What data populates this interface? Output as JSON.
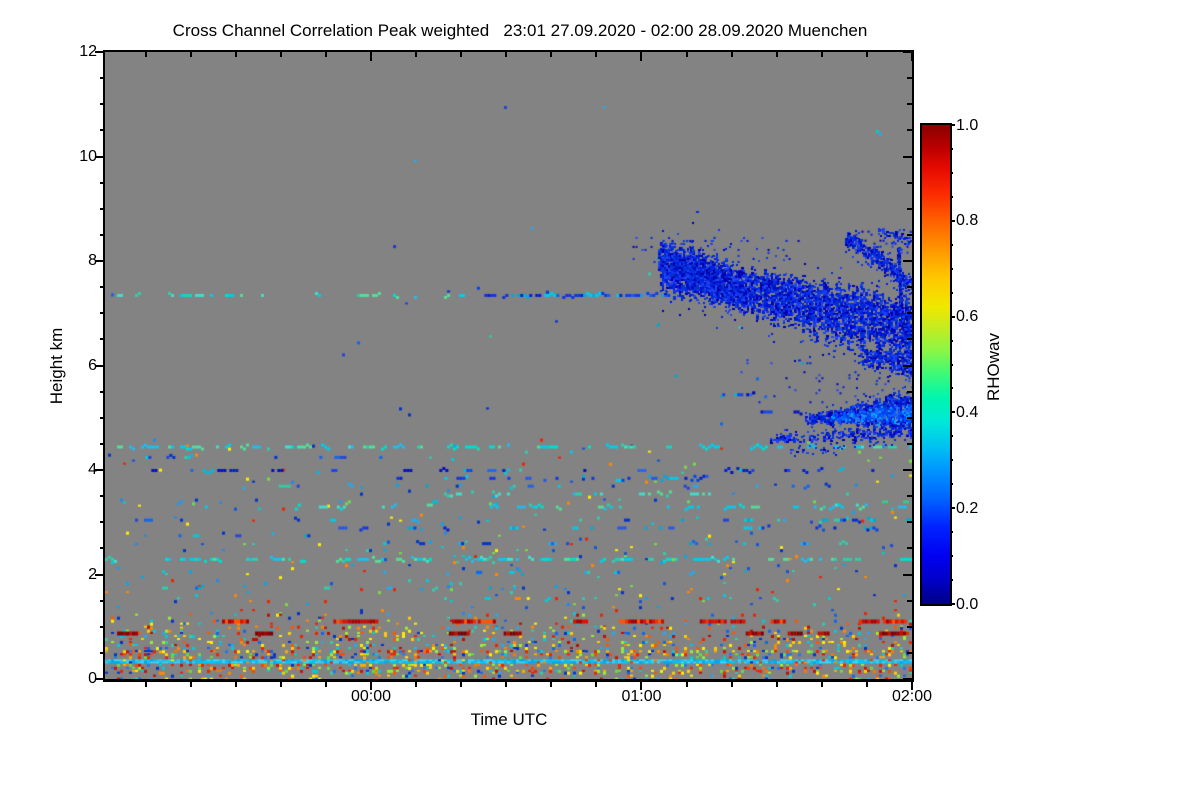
{
  "title": "Cross Channel Correlation Peak weighted   23:01 27.09.2020 - 02:00 28.09.2020 Muenchen",
  "chart_data": {
    "type": "heatmap",
    "title": "Cross Channel Correlation Peak weighted",
    "time_range_label": "23:01 27.09.2020 - 02:00 28.09.2020",
    "site": "Muenchen",
    "xlabel": "Time UTC",
    "ylabel": "Height km",
    "ylim": [
      0,
      12
    ],
    "duration_min": 179,
    "x_ticks": [
      {
        "label": "00:00",
        "minute": 59
      },
      {
        "label": "01:00",
        "minute": 119
      },
      {
        "label": "02:00",
        "minute": 179
      }
    ],
    "x_minor_step_min": 10,
    "y_ticks": [
      {
        "label": "12",
        "value": 12
      },
      {
        "label": "10",
        "value": 10
      },
      {
        "label": "8",
        "value": 8
      },
      {
        "label": "6",
        "value": 6
      },
      {
        "label": "4",
        "value": 4
      },
      {
        "label": "2",
        "value": 2
      },
      {
        "label": "0",
        "value": 0
      }
    ],
    "y_minor_step_km": 0.5,
    "background_color": "#838383",
    "colorbar": {
      "label": "RHOwav",
      "range": [
        0,
        1
      ],
      "minor_step": 0.05,
      "ticks": [
        {
          "label": "1.0",
          "value": 1.0
        },
        {
          "label": "0.8",
          "value": 0.8
        },
        {
          "label": "0.6",
          "value": 0.6
        },
        {
          "label": "0.4",
          "value": 0.4
        },
        {
          "label": "0.2",
          "value": 0.2
        },
        {
          "label": "0.0",
          "value": 0.0
        }
      ],
      "colormap": [
        [
          0.0,
          "#000085"
        ],
        [
          0.05,
          "#0000C8"
        ],
        [
          0.1,
          "#0000F0"
        ],
        [
          0.16,
          "#0022FF"
        ],
        [
          0.22,
          "#0064FF"
        ],
        [
          0.28,
          "#0096FF"
        ],
        [
          0.33,
          "#00C3F0"
        ],
        [
          0.38,
          "#00E8D8"
        ],
        [
          0.43,
          "#00F5B0"
        ],
        [
          0.48,
          "#3CFA78"
        ],
        [
          0.53,
          "#8CF545"
        ],
        [
          0.58,
          "#C8EB1E"
        ],
        [
          0.62,
          "#F0E800"
        ],
        [
          0.68,
          "#FFC800"
        ],
        [
          0.74,
          "#FF9600"
        ],
        [
          0.8,
          "#FF6000"
        ],
        [
          0.86,
          "#FA2800"
        ],
        [
          0.91,
          "#E60A00"
        ],
        [
          0.95,
          "#BE0000"
        ],
        [
          1.0,
          "#8B0000"
        ]
      ]
    },
    "palettes": {
      "cool": [
        "#00CCDD",
        "#22AAEE",
        "#1166EE",
        "#0033CC",
        "#33CCAA",
        "#2244DD",
        "#00AACC"
      ],
      "cyanteal": [
        "#00DDD0",
        "#00CCEE",
        "#33CCAA",
        "#44DDCC",
        "#22BBEE",
        "#55DD99"
      ],
      "bluecyan": [
        "#1133DD",
        "#0022CC",
        "#2255EE",
        "#00AADD",
        "#0044EE",
        "#00CCEE"
      ],
      "blue_heavy": [
        "#0022CC",
        "#1144EE",
        "#0011BB",
        "#2266EE",
        "#00BBDD"
      ],
      "coolgreen": [
        "#33CC88",
        "#00CCAA",
        "#66DD55",
        "#00BBDD",
        "#2299EE"
      ],
      "mix": [
        "#EE2200",
        "#FF8800",
        "#FFEE00",
        "#99EE33",
        "#00CCDD",
        "#1166EE",
        "#0033CC",
        "#FF5500",
        "#22AAEE",
        "#FFCC00",
        "#33CCAA",
        "#BB1100"
      ],
      "mix_warm": [
        "#EE2200",
        "#FF7700",
        "#FFEE00",
        "#FFAA00",
        "#CC1100",
        "#99EE33",
        "#00CCDD",
        "#2277EE",
        "#FFD700",
        "#FF4400",
        "#0033CC",
        "#66DD44"
      ],
      "mix_coolbias": [
        "#00CCDD",
        "#2288EE",
        "#1155DD",
        "#0033CC",
        "#33CCAA",
        "#77DD44",
        "#FFEE00",
        "#FF8800",
        "#EE2200",
        "#00AAEE"
      ],
      "cloudblue": [
        "#0011CC",
        "#0022E0",
        "#1133E8",
        "#0000AA",
        "#2244F0",
        "#0033D0"
      ],
      "cloudbright": [
        "#0055FF",
        "#1166FF",
        "#00AAFF",
        "#2277EE",
        "#0044EE"
      ],
      "redline": [
        "#DD1100",
        "#C40B00",
        "#EE3300",
        "#AA0000",
        "#FF5500"
      ],
      "darkred": [
        "#8B0000",
        "#A00000",
        "#7A0000",
        "#C41000"
      ],
      "cyanband": [
        "#11BBEE",
        "#00CCFF",
        "#44CCEE",
        "#00AAEE",
        "#33DDFF"
      ],
      "cyanband_intr": [
        "#EE2200",
        "#FF8800",
        "#0022CC",
        "#FFEE00",
        "#DD4400"
      ]
    },
    "features": [
      {
        "type": "fill"
      },
      {
        "type": "band",
        "h": [
          8.7,
          12.0
        ],
        "density": 0.0002,
        "palette": "cool"
      },
      {
        "type": "band",
        "h": [
          4.6,
          8.7
        ],
        "density": 0.0008,
        "palette": "cool"
      },
      {
        "type": "band",
        "h": [
          2.6,
          4.6
        ],
        "density": 0.012,
        "palette": "mix_coolbias"
      },
      {
        "type": "band",
        "h": [
          1.25,
          2.6
        ],
        "density": 0.028,
        "palette": "mix_coolbias"
      },
      {
        "type": "band",
        "h": [
          1.0,
          1.25
        ],
        "density": 0.07,
        "palette": "mix"
      },
      {
        "type": "band",
        "h": [
          0.9,
          1.0
        ],
        "density": 0.12,
        "palette": "mix"
      },
      {
        "type": "band",
        "h": [
          0.55,
          0.9
        ],
        "density": 0.2,
        "palette": "mix"
      },
      {
        "type": "band",
        "h": [
          0.38,
          0.55
        ],
        "density": 0.3,
        "palette": "mix_warm"
      },
      {
        "type": "band",
        "h": [
          0.14,
          0.29
        ],
        "density": 0.3,
        "palette": "mix_warm"
      },
      {
        "type": "band",
        "h": [
          0.02,
          0.14
        ],
        "density": 0.17,
        "palette": "mix"
      },
      {
        "type": "streak",
        "h": 7.35,
        "x0": 0.0,
        "x1": 0.47,
        "density": 0.2,
        "palette": "cyanteal",
        "dashmax": 3
      },
      {
        "type": "streak",
        "h": 7.35,
        "x0": 0.47,
        "x1": 0.7,
        "density": 0.5,
        "palette": "bluecyan",
        "dashmax": 5
      },
      {
        "type": "streak",
        "h": 7.45,
        "x0": 0.42,
        "x1": 0.6,
        "density": 0.12,
        "palette": "bluecyan",
        "dashmax": 2
      },
      {
        "type": "streak",
        "h": 4.45,
        "x0": 0.0,
        "x1": 1.0,
        "density": 0.28,
        "palette": "cyanteal",
        "dashmax": 4
      },
      {
        "type": "streak",
        "h": 4.25,
        "x0": 0.05,
        "x1": 0.45,
        "density": 0.08,
        "palette": "cool",
        "dashmax": 2
      },
      {
        "type": "streak",
        "h": 4.0,
        "x0": 0.05,
        "x1": 1.0,
        "density": 0.13,
        "palette": "blue_heavy",
        "dashmax": 3
      },
      {
        "type": "streak",
        "h": 3.85,
        "x0": 0.35,
        "x1": 0.78,
        "density": 0.15,
        "palette": "bluecyan",
        "dashmax": 3
      },
      {
        "type": "streak",
        "h": 3.7,
        "x0": 0.1,
        "x1": 0.9,
        "density": 0.07,
        "palette": "cool",
        "dashmax": 2
      },
      {
        "type": "streak",
        "h": 3.55,
        "x0": 0.42,
        "x1": 0.75,
        "density": 0.11,
        "palette": "cyanteal",
        "dashmax": 3
      },
      {
        "type": "streak",
        "h": 3.4,
        "x0": 0.0,
        "x1": 1.0,
        "density": 0.06,
        "palette": "coolgreen",
        "dashmax": 2
      },
      {
        "type": "streak",
        "h": 3.3,
        "x0": 0.12,
        "x1": 1.0,
        "density": 0.12,
        "palette": "cyanteal",
        "dashmax": 3
      },
      {
        "type": "streak",
        "h": 3.05,
        "x0": 0.0,
        "x1": 1.0,
        "density": 0.09,
        "palette": "cool",
        "dashmax": 3
      },
      {
        "type": "streak",
        "h": 2.9,
        "x0": 0.2,
        "x1": 0.97,
        "density": 0.11,
        "palette": "bluecyan",
        "dashmax": 3
      },
      {
        "type": "streak",
        "h": 2.75,
        "x0": 0.05,
        "x1": 0.6,
        "density": 0.07,
        "palette": "cool",
        "dashmax": 2
      },
      {
        "type": "streak",
        "h": 2.6,
        "x0": 0.3,
        "x1": 1.0,
        "density": 0.09,
        "palette": "cool",
        "dashmax": 3
      },
      {
        "type": "streak",
        "h": 2.3,
        "x0": 0.0,
        "x1": 1.0,
        "density": 0.26,
        "palette": "cyanteal",
        "dashmax": 4
      },
      {
        "type": "streak",
        "h": 2.05,
        "x0": 0.3,
        "x1": 0.78,
        "density": 0.06,
        "palette": "cool",
        "dashmax": 2
      },
      {
        "type": "streak",
        "h": 1.75,
        "x0": 0.0,
        "x1": 0.55,
        "density": 0.05,
        "palette": "cool",
        "dashmax": 2
      },
      {
        "type": "streak",
        "h": 1.55,
        "x0": 0.4,
        "x1": 1.0,
        "density": 0.05,
        "palette": "mix_coolbias",
        "dashmax": 2
      },
      {
        "type": "streak",
        "h": 5.45,
        "x0": 0.75,
        "x1": 0.85,
        "density": 0.2,
        "palette": "blue_heavy",
        "dashmax": 3
      },
      {
        "type": "streak",
        "h": 5.12,
        "x0": 0.79,
        "x1": 0.87,
        "density": 0.4,
        "palette": "blue_heavy",
        "dashmax": 4
      },
      {
        "type": "dashes",
        "h": 1.1,
        "thick": 4,
        "palette": "redline",
        "segments": [
          [
            0.145,
            0.176
          ],
          [
            0.283,
            0.337
          ],
          [
            0.43,
            0.457
          ],
          [
            0.462,
            0.482
          ],
          [
            0.58,
            0.598
          ],
          [
            0.637,
            0.69
          ],
          [
            0.737,
            0.767
          ],
          [
            0.775,
            0.793
          ],
          [
            0.825,
            0.84
          ],
          [
            0.934,
            0.957
          ],
          [
            0.964,
            0.993
          ]
        ]
      },
      {
        "type": "dashes",
        "h": 0.87,
        "thick": 4,
        "palette": "darkred",
        "segments": [
          [
            0.015,
            0.04
          ],
          [
            0.186,
            0.205
          ],
          [
            0.426,
            0.449
          ],
          [
            0.494,
            0.514
          ],
          [
            0.794,
            0.815
          ],
          [
            0.846,
            0.862
          ],
          [
            0.883,
            0.897
          ],
          [
            0.959,
            0.99
          ]
        ]
      },
      {
        "type": "cyanband",
        "h": [
          0.3,
          0.375
        ],
        "fill": 0.9,
        "palette": "cyanband",
        "intruders": 0.07,
        "intruder_palette": "cyanband_intr"
      },
      {
        "type": "rectfill",
        "x": [
          0.65,
          0.86
        ],
        "y": [
          0.295,
          0.335
        ],
        "density": 0.06,
        "palette": "cloudblue"
      },
      {
        "type": "rectfill",
        "x": [
          0.705,
          0.73
        ],
        "y": [
          0.3,
          0.34
        ],
        "density": 0.3,
        "palette": "cloudblue"
      },
      {
        "type": "rectfill",
        "x": [
          0.93,
          1.0
        ],
        "y": [
          0.285,
          0.32
        ],
        "density": 0.12,
        "palette": "cloudblue"
      },
      {
        "type": "rectfill",
        "x": [
          0.78,
          1.0
        ],
        "y": [
          0.49,
          0.558
        ],
        "density": 0.05,
        "palette": "cloudblue"
      },
      {
        "type": "cloud",
        "path": [
          [
            0.685,
            0.335
          ],
          [
            0.737,
            0.351
          ],
          [
            0.793,
            0.38
          ],
          [
            0.861,
            0.399
          ],
          [
            0.935,
            0.419
          ],
          [
            1.0,
            0.44
          ]
        ],
        "th0": 20,
        "th1": 32,
        "fill": 0.82,
        "fringe": 0.5,
        "palette": "cloudblue"
      },
      {
        "type": "cloud",
        "path": [
          [
            0.69,
            0.345
          ],
          [
            0.74,
            0.36
          ],
          [
            0.79,
            0.385
          ]
        ],
        "th0": 26,
        "th1": 18,
        "fill": 0.85,
        "fringe": 0.4,
        "palette": "cloudblue"
      },
      {
        "type": "cloud",
        "path": [
          [
            0.936,
            0.483
          ],
          [
            1.0,
            0.5
          ]
        ],
        "th0": 10,
        "th1": 16,
        "fill": 0.7,
        "fringe": 0.5,
        "palette": "cloudblue"
      },
      {
        "type": "cloud",
        "path": [
          [
            0.917,
            0.295
          ],
          [
            0.96,
            0.33
          ],
          [
            1.0,
            0.375
          ]
        ],
        "th0": 7,
        "th1": 10,
        "fill": 0.75,
        "fringe": 0.6,
        "palette": "cloudblue"
      },
      {
        "type": "cloud",
        "path": [
          [
            0.958,
            0.284
          ],
          [
            1.0,
            0.3
          ]
        ],
        "th0": 4,
        "th1": 6,
        "fill": 0.55,
        "fringe": 0.5,
        "palette": "cloudblue"
      },
      {
        "type": "cloud",
        "path": [
          [
            0.982,
            0.32
          ],
          [
            0.985,
            0.4
          ],
          [
            0.99,
            0.46
          ]
        ],
        "th0": 10,
        "th1": 12,
        "fill": 0.85,
        "fringe": 0.3,
        "palette": "cloudblue"
      },
      {
        "type": "cloud",
        "path": [
          [
            0.874,
            0.451
          ],
          [
            1.0,
            0.49
          ]
        ],
        "th0": 8,
        "th1": 10,
        "fill": 0.22,
        "fringe": 0.6,
        "palette": "cloudblue"
      },
      {
        "type": "cloud",
        "path": [
          [
            0.867,
            0.584
          ],
          [
            0.93,
            0.578
          ],
          [
            1.0,
            0.572
          ]
        ],
        "th0": 4,
        "th1": 22,
        "fill": 0.92,
        "fringe": 0.5,
        "palette": "cloudblue"
      },
      {
        "type": "cloud",
        "path": [
          [
            0.9,
            0.582
          ],
          [
            1.0,
            0.575
          ]
        ],
        "th0": 4,
        "th1": 10,
        "fill": 0.85,
        "fringe": 0.2,
        "palette": "cloudbright"
      },
      {
        "type": "cloud",
        "path": [
          [
            0.824,
            0.617
          ],
          [
            0.923,
            0.61
          ],
          [
            1.0,
            0.603
          ]
        ],
        "th0": 4,
        "th1": 8,
        "fill": 0.6,
        "fringe": 0.5,
        "palette": "cloudblue"
      },
      {
        "type": "cloud",
        "path": [
          [
            0.849,
            0.638
          ],
          [
            0.917,
            0.633
          ]
        ],
        "th0": 2,
        "th1": 3,
        "fill": 0.35,
        "fringe": 0.3,
        "palette": "cloudblue"
      },
      {
        "type": "dot",
        "x": 0.357,
        "y": 0.308,
        "color": "#2233DD"
      }
    ]
  }
}
